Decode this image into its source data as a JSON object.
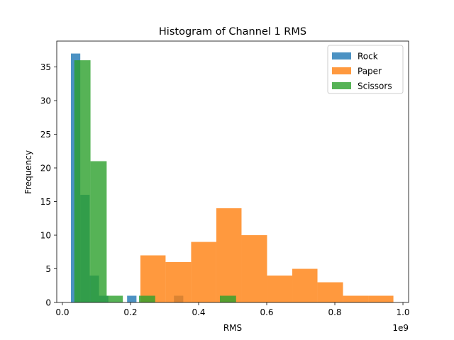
{
  "chart_data": {
    "type": "histogram",
    "title": "Histogram of Channel 1 RMS",
    "xlabel": "RMS",
    "ylabel": "Frequency",
    "x_offset_label": "1e9",
    "x_ticks": [
      {
        "value": 0.0,
        "label": "0.0"
      },
      {
        "value": 0.2,
        "label": "0.2"
      },
      {
        "value": 0.4,
        "label": "0.4"
      },
      {
        "value": 0.6,
        "label": "0.6"
      },
      {
        "value": 0.8,
        "label": "0.8"
      },
      {
        "value": 1.0,
        "label": "1.0"
      }
    ],
    "y_ticks": [
      {
        "value": 0,
        "label": "0"
      },
      {
        "value": 5,
        "label": "5"
      },
      {
        "value": 10,
        "label": "10"
      },
      {
        "value": 15,
        "label": "15"
      },
      {
        "value": 20,
        "label": "20"
      },
      {
        "value": 25,
        "label": "25"
      },
      {
        "value": 30,
        "label": "30"
      },
      {
        "value": 35,
        "label": "35"
      }
    ],
    "xlim": [
      -0.0166,
      1.0166
    ],
    "ylim": [
      0,
      38.85
    ],
    "legend_position": "top-right",
    "series": [
      {
        "name": "Rock",
        "color": "#1f77b4",
        "bins": [
          {
            "x0": 0.025,
            "x1": 0.0525,
            "count": 37
          },
          {
            "x0": 0.0525,
            "x1": 0.08,
            "count": 16
          },
          {
            "x0": 0.08,
            "x1": 0.1075,
            "count": 4
          },
          {
            "x0": 0.1075,
            "x1": 0.135,
            "count": 1
          },
          {
            "x0": 0.135,
            "x1": 0.1625,
            "count": 0
          },
          {
            "x0": 0.1625,
            "x1": 0.19,
            "count": 0
          },
          {
            "x0": 0.19,
            "x1": 0.2175,
            "count": 1
          },
          {
            "x0": 0.2175,
            "x1": 0.245,
            "count": 0
          },
          {
            "x0": 0.245,
            "x1": 0.2725,
            "count": 0
          },
          {
            "x0": 0.2725,
            "x1": 0.3,
            "count": 0
          },
          {
            "x0": 0.3,
            "x1": 0.3275,
            "count": 0
          },
          {
            "x0": 0.3275,
            "x1": 0.355,
            "count": 1
          }
        ]
      },
      {
        "name": "Paper",
        "color": "#ff7f0e",
        "bins": [
          {
            "x0": 0.229,
            "x1": 0.303,
            "count": 7
          },
          {
            "x0": 0.303,
            "x1": 0.378,
            "count": 6
          },
          {
            "x0": 0.378,
            "x1": 0.452,
            "count": 9
          },
          {
            "x0": 0.452,
            "x1": 0.526,
            "count": 14
          },
          {
            "x0": 0.526,
            "x1": 0.601,
            "count": 10
          },
          {
            "x0": 0.601,
            "x1": 0.675,
            "count": 4
          },
          {
            "x0": 0.675,
            "x1": 0.749,
            "count": 5
          },
          {
            "x0": 0.749,
            "x1": 0.824,
            "count": 3
          },
          {
            "x0": 0.824,
            "x1": 0.898,
            "count": 1
          },
          {
            "x0": 0.898,
            "x1": 0.972,
            "count": 1
          }
        ]
      },
      {
        "name": "Scissors",
        "color": "#2ca02c",
        "bins": [
          {
            "x0": 0.035,
            "x1": 0.0825,
            "count": 36
          },
          {
            "x0": 0.0825,
            "x1": 0.13,
            "count": 21
          },
          {
            "x0": 0.13,
            "x1": 0.1775,
            "count": 1
          },
          {
            "x0": 0.1775,
            "x1": 0.225,
            "count": 0
          },
          {
            "x0": 0.225,
            "x1": 0.2725,
            "count": 1
          },
          {
            "x0": 0.2725,
            "x1": 0.32,
            "count": 0
          },
          {
            "x0": 0.32,
            "x1": 0.3675,
            "count": 0
          },
          {
            "x0": 0.3675,
            "x1": 0.415,
            "count": 0
          },
          {
            "x0": 0.415,
            "x1": 0.4625,
            "count": 0
          },
          {
            "x0": 0.4625,
            "x1": 0.51,
            "count": 1
          }
        ]
      }
    ]
  }
}
